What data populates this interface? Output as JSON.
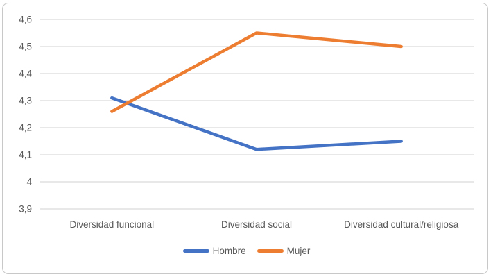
{
  "chart_data": {
    "type": "line",
    "categories": [
      "Diversidad funcional",
      "Diversidad social",
      "Diversidad cultural/religiosa"
    ],
    "series": [
      {
        "name": "Hombre",
        "color": "#4472C4",
        "values": [
          4.31,
          4.12,
          4.15
        ]
      },
      {
        "name": "Mujer",
        "color": "#ED7D31",
        "values": [
          4.26,
          4.55,
          4.5
        ]
      }
    ],
    "title": "",
    "xlabel": "",
    "ylabel": "",
    "ylim": [
      3.9,
      4.6
    ],
    "y_tick_step": 0.1,
    "y_tick_labels": [
      "3,9",
      "4",
      "4,1",
      "4,2",
      "4,3",
      "4,4",
      "4,5",
      "4,6"
    ],
    "grid": true,
    "legend_position": "bottom"
  },
  "styles": {
    "grid_color": "#D9D9D9",
    "text_color": "#595959",
    "frame_border_color": "#C8C8C8",
    "background": "#FFFFFF",
    "hombre_color": "#4472C4",
    "mujer_color": "#ED7D31"
  }
}
